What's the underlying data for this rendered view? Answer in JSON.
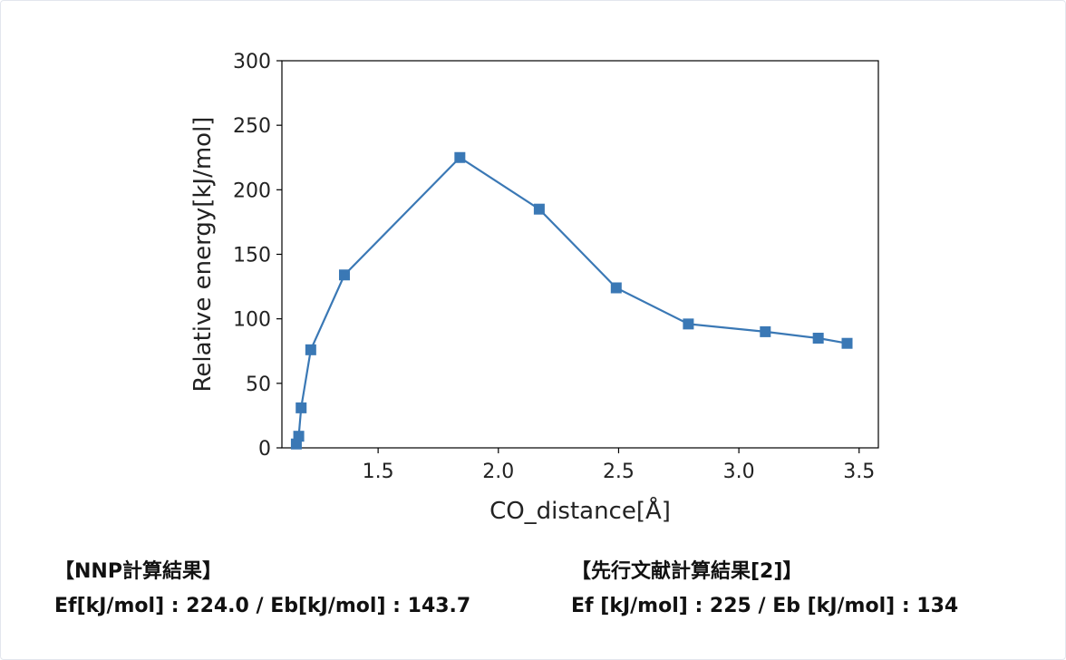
{
  "chart_data": {
    "type": "line",
    "title": "",
    "xlabel": "CO_distance[Å]",
    "ylabel": "Relative energy[kJ/mol]",
    "xlim": [
      1.1,
      3.58
    ],
    "ylim": [
      0,
      300
    ],
    "x_ticks": [
      1.5,
      2.0,
      2.5,
      3.0,
      3.5
    ],
    "x_tick_labels": [
      "1.5",
      "2.0",
      "2.5",
      "3.0",
      "3.5"
    ],
    "y_ticks": [
      0,
      50,
      100,
      150,
      200,
      250,
      300
    ],
    "y_tick_labels": [
      "0",
      "50",
      "100",
      "150",
      "200",
      "250",
      "300"
    ],
    "grid": false,
    "series": [
      {
        "color": "#3a78b5",
        "marker": "square",
        "x": [
          1.16,
          1.17,
          1.18,
          1.22,
          1.36,
          1.84,
          2.17,
          2.49,
          2.79,
          3.11,
          3.33,
          3.45
        ],
        "y": [
          3,
          9,
          31,
          76,
          134,
          225,
          185,
          124,
          96,
          90,
          85,
          81
        ]
      }
    ]
  },
  "results": {
    "left": {
      "heading": "【NNP計算結果】",
      "values": "Ef[kJ/mol] : 224.0 / Eb[kJ/mol] : 143.7"
    },
    "right": {
      "heading": "【先行文献計算結果[2]】",
      "values": "Ef [kJ/mol] : 225 / Eb [kJ/mol] : 134"
    }
  }
}
